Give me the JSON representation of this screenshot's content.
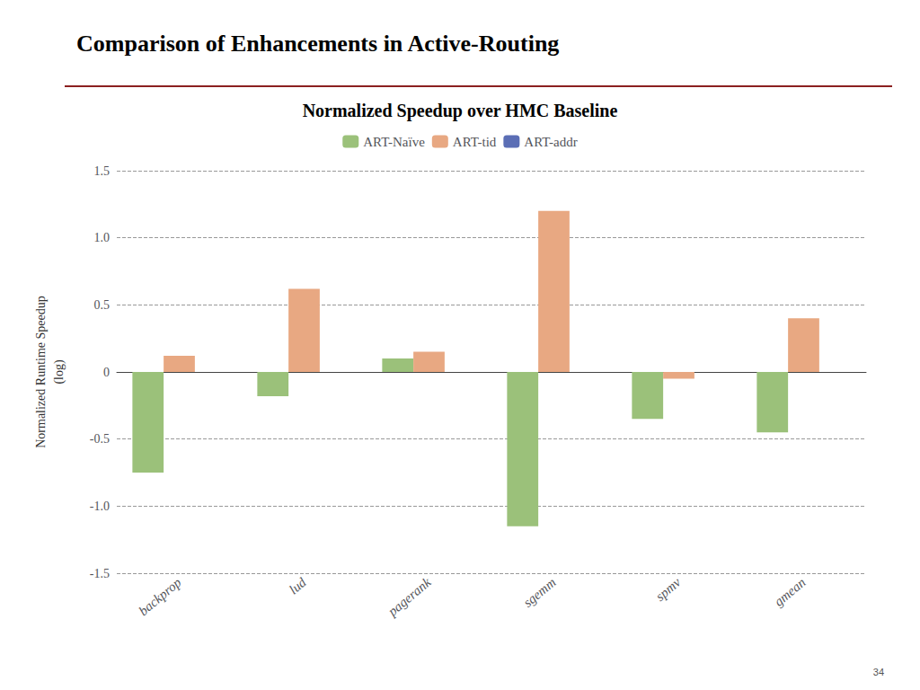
{
  "chart_data": {
    "type": "bar",
    "title": "Comparison of Enhancements in Active-Routing",
    "subtitle": "Normalized Speedup over HMC Baseline",
    "categories": [
      "backprop",
      "lud",
      "pagerank",
      "sgemm",
      "spmv",
      "gmean"
    ],
    "series": [
      {
        "name": "ART-Naïve",
        "color": "#9bc17a",
        "values": [
          -0.75,
          -0.18,
          0.1,
          -1.15,
          -0.35,
          -0.45
        ]
      },
      {
        "name": "ART-tid",
        "color": "#e8a882",
        "values": [
          0.12,
          0.62,
          0.15,
          1.2,
          -0.05,
          0.4
        ]
      },
      {
        "name": "ART-addr",
        "color": "#5b6eb5",
        "values": [
          0.0,
          0.0,
          0.0,
          0.0,
          0.0,
          0.0
        ]
      }
    ],
    "ylabel": "Normalized Runtime Speedup\n(log)",
    "ylim": [
      -1.5,
      1.5
    ],
    "yticks": [
      -1.5,
      {
        "value": -1.0,
        "label": "-1.0"
      },
      -0.5,
      0,
      0.5,
      {
        "value": 1.0,
        "label": "1.0"
      },
      1.5
    ],
    "grid": true,
    "legend": "top",
    "annotations": [
      "34"
    ]
  }
}
